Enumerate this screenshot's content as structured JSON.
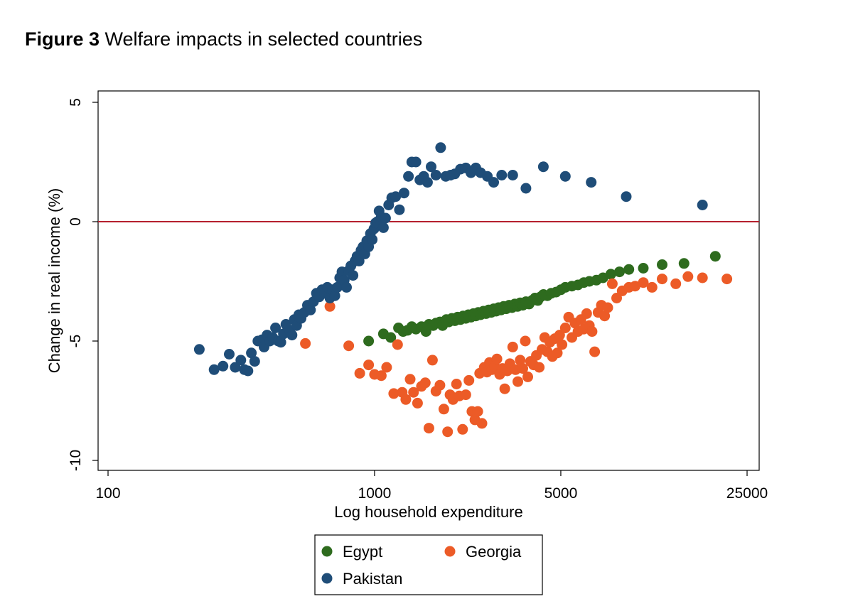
{
  "figure": {
    "label": "Figure 3",
    "caption": "Welfare impacts in selected countries"
  },
  "chart_data": {
    "type": "scatter",
    "title": "Figure 3 Welfare impacts in selected countries",
    "xlabel": "Log household expenditure",
    "ylabel": "Change in real income (%)",
    "xscale": "log",
    "xlim": [
      100,
      25000
    ],
    "ylim": [
      -10.5,
      5.5
    ],
    "xticks": [
      100,
      1000,
      5000,
      25000
    ],
    "xtick_labels": [
      "100",
      "1000",
      "5000",
      "25000"
    ],
    "yticks": [
      5,
      0,
      -5,
      -10
    ],
    "ytick_labels": [
      "5",
      "0",
      "-5",
      "-10"
    ],
    "reference_line": {
      "y": 0,
      "color": "#b5202e"
    },
    "legend": {
      "placement": "bottom",
      "entries": [
        "Egypt",
        "Georgia",
        "Pakistan"
      ]
    },
    "series": [
      {
        "name": "Egypt",
        "color": "#2e6b1e",
        "points": [
          [
            950,
            -5.0
          ],
          [
            1080,
            -4.7
          ],
          [
            1150,
            -4.85
          ],
          [
            1230,
            -4.45
          ],
          [
            1280,
            -4.6
          ],
          [
            1330,
            -4.55
          ],
          [
            1380,
            -4.4
          ],
          [
            1430,
            -4.5
          ],
          [
            1500,
            -4.4
          ],
          [
            1560,
            -4.6
          ],
          [
            1600,
            -4.3
          ],
          [
            1660,
            -4.35
          ],
          [
            1700,
            -4.25
          ],
          [
            1760,
            -4.2
          ],
          [
            1800,
            -4.35
          ],
          [
            1860,
            -4.1
          ],
          [
            1900,
            -4.2
          ],
          [
            1950,
            -4.05
          ],
          [
            2000,
            -4.15
          ],
          [
            2050,
            -4.0
          ],
          [
            2100,
            -4.1
          ],
          [
            2150,
            -3.95
          ],
          [
            2200,
            -4.05
          ],
          [
            2250,
            -3.9
          ],
          [
            2300,
            -4.0
          ],
          [
            2350,
            -3.85
          ],
          [
            2400,
            -3.95
          ],
          [
            2450,
            -3.8
          ],
          [
            2500,
            -3.9
          ],
          [
            2560,
            -3.75
          ],
          [
            2620,
            -3.85
          ],
          [
            2680,
            -3.7
          ],
          [
            2740,
            -3.8
          ],
          [
            2800,
            -3.65
          ],
          [
            2860,
            -3.75
          ],
          [
            2920,
            -3.6
          ],
          [
            2980,
            -3.7
          ],
          [
            3050,
            -3.55
          ],
          [
            3120,
            -3.65
          ],
          [
            3200,
            -3.5
          ],
          [
            3280,
            -3.6
          ],
          [
            3360,
            -3.45
          ],
          [
            3440,
            -3.55
          ],
          [
            3520,
            -3.4
          ],
          [
            3600,
            -3.5
          ],
          [
            3700,
            -3.35
          ],
          [
            3800,
            -3.45
          ],
          [
            3900,
            -3.3
          ],
          [
            4000,
            -3.2
          ],
          [
            4100,
            -3.3
          ],
          [
            4200,
            -3.15
          ],
          [
            4300,
            -3.05
          ],
          [
            4450,
            -3.1
          ],
          [
            4600,
            -3.0
          ],
          [
            4800,
            -2.95
          ],
          [
            5000,
            -2.85
          ],
          [
            5200,
            -2.75
          ],
          [
            5500,
            -2.7
          ],
          [
            5800,
            -2.65
          ],
          [
            6100,
            -2.55
          ],
          [
            6400,
            -2.5
          ],
          [
            6800,
            -2.45
          ],
          [
            7200,
            -2.35
          ],
          [
            7700,
            -2.2
          ],
          [
            8300,
            -2.1
          ],
          [
            9000,
            -2.0
          ],
          [
            10200,
            -1.95
          ],
          [
            12000,
            -1.8
          ],
          [
            14500,
            -1.75
          ],
          [
            19000,
            -1.45
          ]
        ]
      },
      {
        "name": "Georgia",
        "color": "#ec5b27",
        "points": [
          [
            550,
            -5.1
          ],
          [
            680,
            -3.55
          ],
          [
            800,
            -5.2
          ],
          [
            880,
            -6.35
          ],
          [
            950,
            -6.0
          ],
          [
            1000,
            -6.4
          ],
          [
            1060,
            -6.45
          ],
          [
            1110,
            -6.1
          ],
          [
            1180,
            -7.2
          ],
          [
            1220,
            -5.15
          ],
          [
            1270,
            -7.15
          ],
          [
            1310,
            -7.45
          ],
          [
            1360,
            -6.6
          ],
          [
            1400,
            -7.15
          ],
          [
            1450,
            -7.6
          ],
          [
            1500,
            -6.9
          ],
          [
            1550,
            -6.75
          ],
          [
            1600,
            -8.65
          ],
          [
            1650,
            -5.8
          ],
          [
            1700,
            -7.1
          ],
          [
            1760,
            -6.85
          ],
          [
            1820,
            -7.85
          ],
          [
            1880,
            -8.8
          ],
          [
            1920,
            -7.25
          ],
          [
            1970,
            -7.45
          ],
          [
            2030,
            -6.8
          ],
          [
            2080,
            -7.3
          ],
          [
            2140,
            -8.7
          ],
          [
            2200,
            -7.25
          ],
          [
            2260,
            -6.65
          ],
          [
            2320,
            -7.95
          ],
          [
            2380,
            -8.3
          ],
          [
            2440,
            -7.95
          ],
          [
            2480,
            -6.35
          ],
          [
            2530,
            -8.45
          ],
          [
            2580,
            -6.1
          ],
          [
            2640,
            -6.3
          ],
          [
            2700,
            -5.9
          ],
          [
            2760,
            -6.2
          ],
          [
            2820,
            -6.05
          ],
          [
            2880,
            -5.75
          ],
          [
            2950,
            -6.4
          ],
          [
            3020,
            -6.15
          ],
          [
            3080,
            -7.0
          ],
          [
            3150,
            -6.25
          ],
          [
            3220,
            -5.95
          ],
          [
            3300,
            -5.25
          ],
          [
            3380,
            -6.2
          ],
          [
            3450,
            -6.7
          ],
          [
            3520,
            -5.8
          ],
          [
            3600,
            -6.15
          ],
          [
            3680,
            -5.0
          ],
          [
            3760,
            -6.5
          ],
          [
            3850,
            -5.85
          ],
          [
            3950,
            -6.0
          ],
          [
            4050,
            -5.6
          ],
          [
            4150,
            -6.1
          ],
          [
            4250,
            -5.35
          ],
          [
            4350,
            -4.85
          ],
          [
            4450,
            -5.45
          ],
          [
            4550,
            -5.05
          ],
          [
            4650,
            -5.65
          ],
          [
            4750,
            -4.9
          ],
          [
            4850,
            -5.5
          ],
          [
            4950,
            -4.75
          ],
          [
            5050,
            -5.15
          ],
          [
            5200,
            -4.45
          ],
          [
            5350,
            -4.0
          ],
          [
            5500,
            -4.85
          ],
          [
            5650,
            -4.25
          ],
          [
            5800,
            -4.6
          ],
          [
            5950,
            -4.1
          ],
          [
            6100,
            -4.5
          ],
          [
            6250,
            -3.85
          ],
          [
            6400,
            -4.35
          ],
          [
            6550,
            -4.6
          ],
          [
            6700,
            -5.45
          ],
          [
            6900,
            -3.8
          ],
          [
            7100,
            -3.5
          ],
          [
            7300,
            -3.95
          ],
          [
            7500,
            -3.6
          ],
          [
            7800,
            -2.6
          ],
          [
            8100,
            -3.2
          ],
          [
            8500,
            -2.9
          ],
          [
            9000,
            -2.75
          ],
          [
            9500,
            -2.7
          ],
          [
            10200,
            -2.55
          ],
          [
            11000,
            -2.75
          ],
          [
            12000,
            -2.4
          ],
          [
            13500,
            -2.6
          ],
          [
            15000,
            -2.3
          ],
          [
            17000,
            -2.35
          ],
          [
            21000,
            -2.4
          ]
        ]
      },
      {
        "name": "Pakistan",
        "color": "#1f4d78",
        "points": [
          [
            220,
            -5.35
          ],
          [
            250,
            -6.2
          ],
          [
            270,
            -6.05
          ],
          [
            285,
            -5.55
          ],
          [
            300,
            -6.1
          ],
          [
            315,
            -5.8
          ],
          [
            325,
            -6.2
          ],
          [
            335,
            -6.25
          ],
          [
            345,
            -5.5
          ],
          [
            355,
            -5.85
          ],
          [
            365,
            -5.0
          ],
          [
            378,
            -4.95
          ],
          [
            385,
            -5.25
          ],
          [
            395,
            -4.75
          ],
          [
            405,
            -5.0
          ],
          [
            415,
            -4.85
          ],
          [
            425,
            -4.45
          ],
          [
            435,
            -5.0
          ],
          [
            445,
            -5.05
          ],
          [
            455,
            -4.7
          ],
          [
            465,
            -4.3
          ],
          [
            480,
            -4.55
          ],
          [
            490,
            -4.75
          ],
          [
            500,
            -4.1
          ],
          [
            510,
            -4.35
          ],
          [
            520,
            -3.9
          ],
          [
            530,
            -4.05
          ],
          [
            545,
            -3.8
          ],
          [
            560,
            -3.5
          ],
          [
            575,
            -3.7
          ],
          [
            590,
            -3.35
          ],
          [
            605,
            -3.0
          ],
          [
            620,
            -3.15
          ],
          [
            635,
            -2.85
          ],
          [
            650,
            -3.0
          ],
          [
            665,
            -2.75
          ],
          [
            680,
            -3.2
          ],
          [
            695,
            -2.85
          ],
          [
            710,
            -3.1
          ],
          [
            725,
            -2.75
          ],
          [
            740,
            -2.35
          ],
          [
            755,
            -2.1
          ],
          [
            770,
            -2.45
          ],
          [
            785,
            -2.75
          ],
          [
            800,
            -2.05
          ],
          [
            815,
            -1.85
          ],
          [
            830,
            -2.25
          ],
          [
            845,
            -1.65
          ],
          [
            860,
            -1.45
          ],
          [
            875,
            -1.65
          ],
          [
            890,
            -1.2
          ],
          [
            905,
            -1.05
          ],
          [
            920,
            -1.35
          ],
          [
            935,
            -0.8
          ],
          [
            950,
            -1.05
          ],
          [
            965,
            -0.5
          ],
          [
            980,
            -0.75
          ],
          [
            995,
            -0.3
          ],
          [
            1010,
            -0.05
          ],
          [
            1025,
            0.0
          ],
          [
            1040,
            0.45
          ],
          [
            1060,
            0.2
          ],
          [
            1080,
            -0.25
          ],
          [
            1100,
            0.15
          ],
          [
            1130,
            0.7
          ],
          [
            1160,
            1.0
          ],
          [
            1200,
            1.05
          ],
          [
            1240,
            0.5
          ],
          [
            1290,
            1.2
          ],
          [
            1340,
            1.9
          ],
          [
            1380,
            2.5
          ],
          [
            1430,
            2.5
          ],
          [
            1480,
            1.75
          ],
          [
            1530,
            1.9
          ],
          [
            1580,
            1.65
          ],
          [
            1630,
            2.3
          ],
          [
            1700,
            1.95
          ],
          [
            1770,
            3.1
          ],
          [
            1850,
            1.9
          ],
          [
            1930,
            1.95
          ],
          [
            2000,
            2.0
          ],
          [
            2100,
            2.2
          ],
          [
            2200,
            2.25
          ],
          [
            2300,
            2.05
          ],
          [
            2400,
            2.25
          ],
          [
            2500,
            2.05
          ],
          [
            2650,
            1.9
          ],
          [
            2800,
            1.65
          ],
          [
            3000,
            1.95
          ],
          [
            3300,
            1.95
          ],
          [
            3700,
            1.4
          ],
          [
            4300,
            2.3
          ],
          [
            5200,
            1.9
          ],
          [
            6500,
            1.65
          ],
          [
            8800,
            1.05
          ],
          [
            17000,
            0.7
          ]
        ]
      }
    ]
  }
}
